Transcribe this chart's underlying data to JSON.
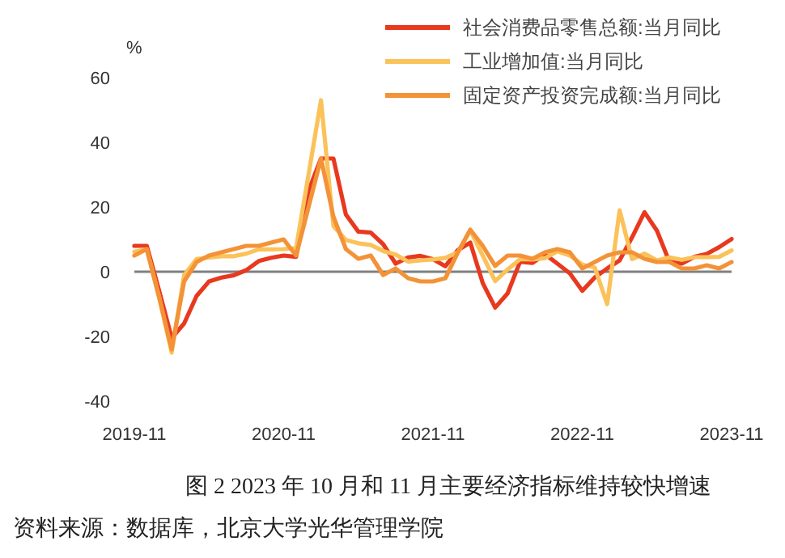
{
  "chart_data": {
    "type": "line",
    "title": "图 2 2023 年 10 月和 11 月主要经济指标维持较快增速",
    "ylabel": "%",
    "annotations": [
      "资料来源：数据库，北京大学光华管理学院"
    ],
    "x": [
      "2019-11",
      "2019-12",
      "2020-01",
      "2020-02",
      "2020-03",
      "2020-04",
      "2020-05",
      "2020-06",
      "2020-07",
      "2020-08",
      "2020-09",
      "2020-10",
      "2020-11",
      "2020-12",
      "2021-01",
      "2021-02",
      "2021-03",
      "2021-04",
      "2021-05",
      "2021-06",
      "2021-07",
      "2021-08",
      "2021-09",
      "2021-10",
      "2021-11",
      "2021-12",
      "2022-01",
      "2022-02",
      "2022-03",
      "2022-04",
      "2022-05",
      "2022-06",
      "2022-07",
      "2022-08",
      "2022-09",
      "2022-10",
      "2022-11",
      "2022-12",
      "2023-01",
      "2023-02",
      "2023-03",
      "2023-04",
      "2023-05",
      "2023-06",
      "2023-07",
      "2023-08",
      "2023-09",
      "2023-10",
      "2023-11"
    ],
    "series": [
      {
        "name": "社会消费品零售总额:当月同比",
        "color": "#e8391f",
        "values": [
          8,
          8,
          -6,
          -20.5,
          -16,
          -7.5,
          -3,
          -1.8,
          -1.1,
          0.5,
          3.3,
          4.3,
          5,
          4.6,
          25,
          35,
          35,
          17.7,
          12.4,
          12.1,
          8.5,
          2.5,
          4.4,
          4.9,
          3.9,
          1.7,
          6.7,
          9,
          -3.5,
          -11.1,
          -6.7,
          3.1,
          2.7,
          5.4,
          2.5,
          -0.5,
          -5.9,
          -1.8,
          1,
          3.5,
          10.6,
          18.4,
          12.7,
          3.1,
          2.5,
          4.6,
          5.5,
          7.6,
          10.1
        ]
      },
      {
        "name": "工业增加值:当月同比",
        "color": "#fbc25a",
        "values": [
          6.2,
          6.9,
          -8,
          -25,
          -1.1,
          3.9,
          4.4,
          4.8,
          4.8,
          5.6,
          6.9,
          6.9,
          7,
          7.3,
          30,
          53,
          14.1,
          9.8,
          8.8,
          8.3,
          6.4,
          5.3,
          3.1,
          3.5,
          3.8,
          4.3,
          6,
          12.8,
          5,
          -2.9,
          0.7,
          3.9,
          3.8,
          4.2,
          6.3,
          5,
          2.2,
          1.3,
          -10,
          19,
          3.9,
          5.6,
          3.5,
          4.4,
          3.7,
          4.5,
          4.5,
          4.6,
          6.6
        ]
      },
      {
        "name": "固定资产投资完成额:当月同比",
        "color": "#f39237",
        "values": [
          5,
          7,
          -8,
          -24,
          -3,
          3,
          5,
          6,
          7,
          8,
          8,
          9,
          10,
          5,
          20,
          35,
          17,
          7,
          4,
          5,
          -1,
          1,
          -2,
          -3,
          -3,
          -2,
          6,
          13,
          8,
          1.8,
          5,
          5,
          4,
          6,
          7,
          6,
          1,
          3,
          5,
          6,
          6,
          4,
          3,
          3,
          1,
          1,
          2,
          1,
          3
        ]
      }
    ],
    "xlim": [
      "2019-11",
      "2023-11"
    ],
    "xticks": [
      "2019-11",
      "2020-11",
      "2021-11",
      "2022-11",
      "2023-11"
    ],
    "ylim": [
      -40,
      60
    ],
    "yticks": [
      -40,
      -20,
      0,
      20,
      40,
      60
    ],
    "ref_lines": [
      {
        "axis": "y",
        "value": 0,
        "color": "#808080"
      }
    ],
    "legend": "top right",
    "grid": false,
    "marker": "none",
    "line_style": "solid"
  }
}
